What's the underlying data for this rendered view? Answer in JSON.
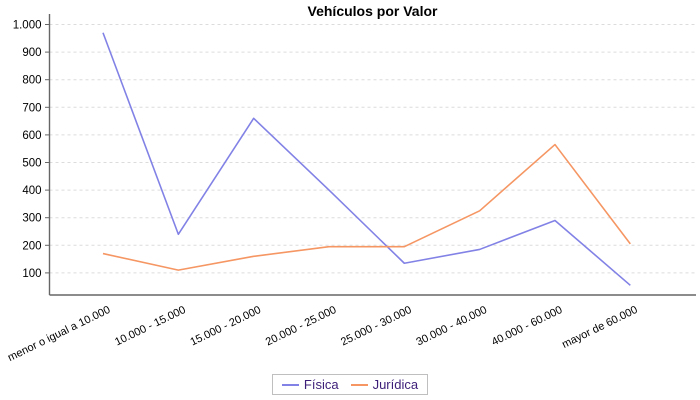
{
  "chart_data": {
    "type": "line",
    "title": "Vehículos por Valor",
    "categories": [
      "menor o igual a 10.000",
      "10.000 - 15.000",
      "15.000 - 20.000",
      "20.000 - 25.000",
      "25.000 - 30.000",
      "30.000 - 40.000",
      "40.000 - 60.000",
      "mayor de 60.000"
    ],
    "series": [
      {
        "name": "Física",
        "color": "#8282E6",
        "values": [
          970,
          240,
          660,
          400,
          135,
          185,
          290,
          55
        ]
      },
      {
        "name": "Jurídica",
        "color": "#F59663",
        "values": [
          170,
          110,
          160,
          195,
          195,
          325,
          565,
          205
        ]
      }
    ],
    "y_ticks": [
      {
        "value": 100,
        "label": "100"
      },
      {
        "value": 200,
        "label": "200"
      },
      {
        "value": 300,
        "label": "300"
      },
      {
        "value": 400,
        "label": "400"
      },
      {
        "value": 500,
        "label": "500"
      },
      {
        "value": 600,
        "label": "600"
      },
      {
        "value": 700,
        "label": "700"
      },
      {
        "value": 800,
        "label": "800"
      },
      {
        "value": 900,
        "label": "900"
      },
      {
        "value": 1000,
        "label": "1.000"
      }
    ],
    "ylim": [
      0,
      1000
    ],
    "xlabel": "",
    "ylabel": "",
    "grid": "horizontal-dashed",
    "legend_position": "bottom-center",
    "legend_text_color": "#3C1E78",
    "axis_color": "#666666",
    "grid_color": "#DCDCDC",
    "tick_label_color": "#000000",
    "background_color": "#FFFFFF"
  }
}
